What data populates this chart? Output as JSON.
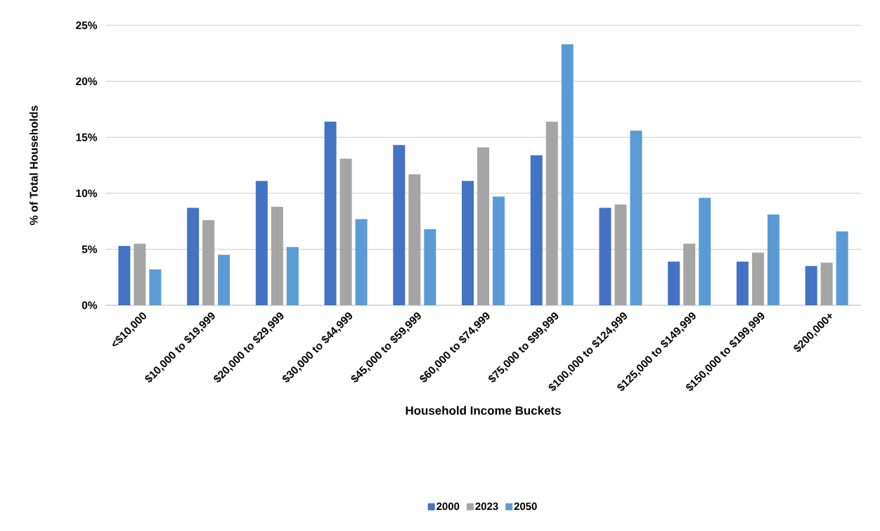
{
  "chart_data": {
    "type": "bar",
    "xlabel": "Household Income Buckets",
    "ylabel": "% of Total Households",
    "categories": [
      "<$10,000",
      "$10,000 to $19,999",
      "$20,000 to $29,999",
      "$30,000 to $44,999",
      "$45,000 to $59,999",
      "$60,000 to $74,999",
      "$75,000 to $99,999",
      "$100,000 to $124,999",
      "$125,000 to $149,999",
      "$150,000 to $199,999",
      "$200,000+"
    ],
    "series": [
      {
        "name": "2000",
        "color": "#4472c4",
        "values": [
          5.3,
          8.7,
          11.1,
          16.4,
          14.3,
          11.1,
          13.4,
          8.7,
          3.9,
          3.9,
          3.5
        ]
      },
      {
        "name": "2023",
        "color": "#a5a5a5",
        "values": [
          5.5,
          7.6,
          8.8,
          13.1,
          11.7,
          14.1,
          16.4,
          9.0,
          5.5,
          4.7,
          3.8
        ]
      },
      {
        "name": "2050",
        "color": "#5b9bd5",
        "values": [
          3.2,
          4.5,
          5.2,
          7.7,
          6.8,
          9.7,
          23.3,
          15.6,
          9.6,
          8.1,
          6.6
        ]
      }
    ],
    "ylim": [
      0,
      25
    ],
    "yticks": [
      {
        "value": 0,
        "label": "0%"
      },
      {
        "value": 5,
        "label": "5%"
      },
      {
        "value": 10,
        "label": "10%"
      },
      {
        "value": 15,
        "label": "15%"
      },
      {
        "value": 20,
        "label": "20%"
      },
      {
        "value": 25,
        "label": "25%"
      }
    ],
    "grid": "y",
    "legend": "bottom"
  }
}
